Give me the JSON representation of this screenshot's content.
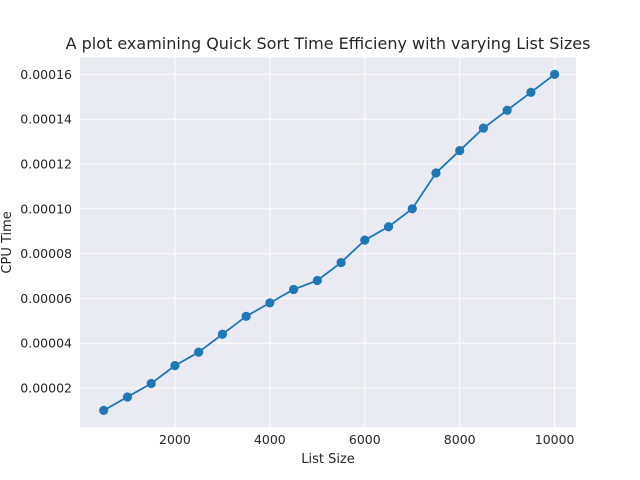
{
  "chart_data": {
    "type": "line",
    "title": "A plot examining Quick Sort Time Efficieny with varying List Sizes",
    "xlabel": "List Size",
    "ylabel": "CPU Time",
    "xlim": [
      0,
      10450
    ],
    "ylim": [
      2.5e-06,
      0.0001675
    ],
    "xticks": [
      2000,
      4000,
      6000,
      8000,
      10000
    ],
    "xtick_labels": [
      "2000",
      "4000",
      "6000",
      "8000",
      "10000"
    ],
    "yticks": [
      2e-05,
      4e-05,
      6e-05,
      8e-05,
      0.0001,
      0.00012,
      0.00014,
      0.00016
    ],
    "ytick_labels": [
      "0.00002",
      "0.00004",
      "0.00006",
      "0.00008",
      "0.00010",
      "0.00012",
      "0.00014",
      "0.00016"
    ],
    "grid": true,
    "series": [
      {
        "name": "Quick Sort",
        "color": "#1f77b4",
        "marker": "circle",
        "x": [
          500,
          1000,
          1500,
          2000,
          2500,
          3000,
          3500,
          4000,
          4500,
          5000,
          5500,
          6000,
          6500,
          7000,
          7500,
          8000,
          8500,
          9000,
          9500,
          10000
        ],
        "y": [
          1e-05,
          1.6e-05,
          2.2e-05,
          3e-05,
          3.6e-05,
          4.4e-05,
          5.2e-05,
          5.8e-05,
          6.4e-05,
          6.8e-05,
          7.6e-05,
          8.6e-05,
          9.2e-05,
          0.0001,
          0.000116,
          0.000126,
          0.000136,
          0.000144,
          0.000152,
          0.00016
        ]
      }
    ]
  },
  "colors": {
    "plot_background": "#eaeaf2",
    "grid": "#ffffff",
    "line": "#1f77b4"
  }
}
